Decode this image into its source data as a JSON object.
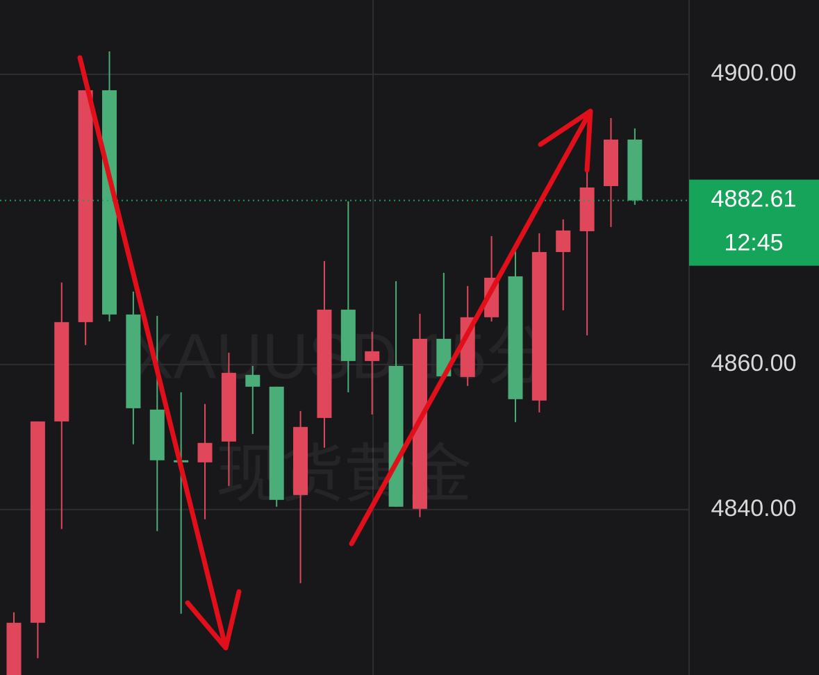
{
  "chart_data": {
    "type": "candlestick",
    "watermark_symbol": "XAUUSD 15分",
    "watermark_name": "现货黄金",
    "open": [
      4817.2,
      4824.4,
      4852.15,
      4865.84,
      4897.8,
      4866.89,
      4853.78,
      4846.8,
      4846.51,
      4849.38,
      4858.57,
      4856.94,
      4842.01,
      4852.63,
      4867.56,
      4860.48,
      4859.81,
      4840.1,
      4863.54,
      4858.28,
      4866.51,
      4872.15,
      4855.03,
      4875.5,
      4878.37,
      4884.59,
      4891.0
    ],
    "high": [
      4825.84,
      4852.15,
      4871.29,
      4897.8,
      4903.16,
      4870.05,
      4866.7,
      4856.17,
      4854.55,
      4861.63,
      4859.81,
      4856.94,
      4853.59,
      4874.26,
      4882.49,
      4864.5,
      4871.48,
      4866.99,
      4872.63,
      4870.81,
      4877.7,
      4875.79,
      4878.09,
      4880.0,
      4886.79,
      4893.97,
      4892.54
    ],
    "low": [
      4817.2,
      4819.52,
      4837.32,
      4862.68,
      4865.93,
      4849.0,
      4837.04,
      4825.65,
      4838.66,
      4843.26,
      4850.43,
      4840.39,
      4829.86,
      4848.52,
      4856.17,
      4853.11,
      4840.39,
      4838.95,
      4857.8,
      4857.04,
      4865.93,
      4852.06,
      4853.4,
      4867.47,
      4864.02,
      4878.95,
      4882.01
    ],
    "close": [
      4824.4,
      4852.15,
      4865.84,
      4897.8,
      4866.89,
      4853.97,
      4846.8,
      4846.51,
      4849.19,
      4858.85,
      4856.94,
      4841.34,
      4851.39,
      4867.56,
      4860.48,
      4861.82,
      4840.39,
      4863.54,
      4858.37,
      4866.51,
      4871.96,
      4855.22,
      4875.5,
      4878.47,
      4884.4,
      4891.0,
      4882.61
    ],
    "up_color": "#e0475b",
    "down_color": "#4bae78",
    "last_price": 4882.61,
    "countdown": "12:45",
    "price_tag_color": "#16a35a",
    "ylim": [
      4817.2,
      4910.24
    ],
    "yticks": [
      {
        "value": 4900,
        "label": "4900.00"
      },
      {
        "value": 4860,
        "label": "4860.00"
      },
      {
        "value": 4840,
        "label": "4840.00"
      }
    ],
    "grid": true
  }
}
